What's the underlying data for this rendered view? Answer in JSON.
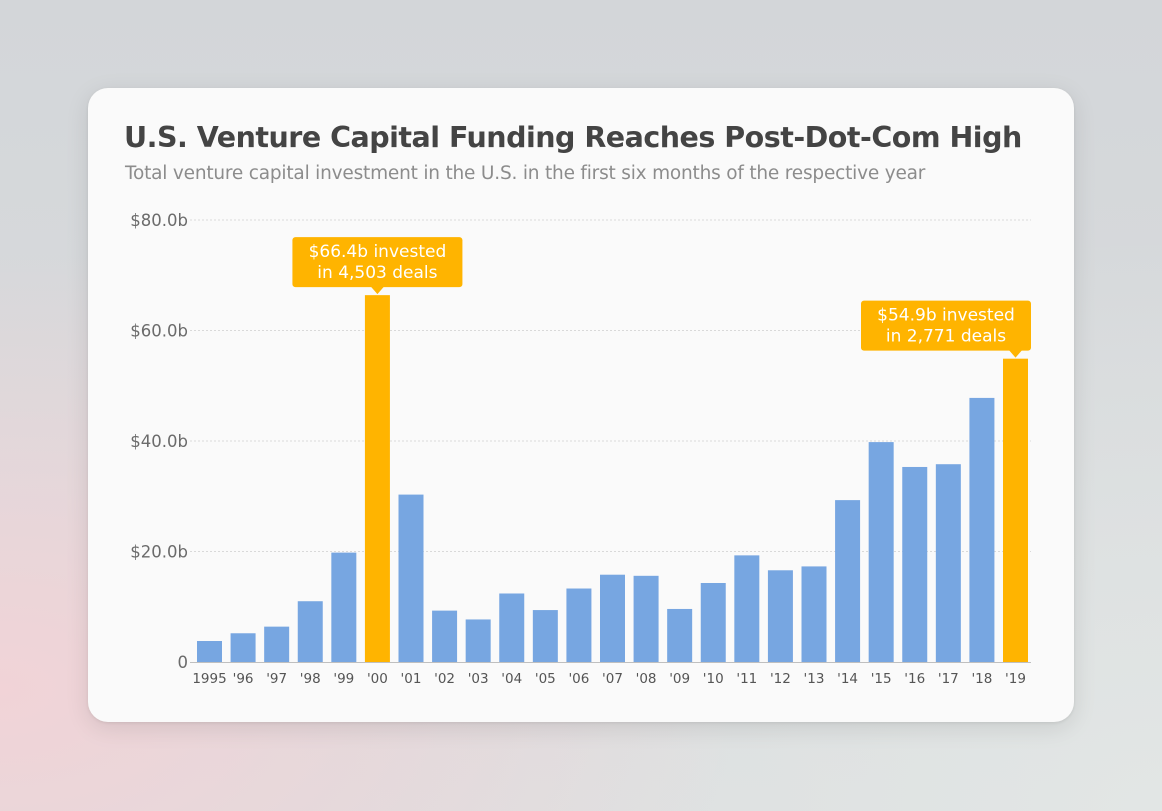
{
  "chart_data": {
    "type": "bar",
    "title": "U.S. Venture Capital Funding Reaches Post-Dot-Com High",
    "subtitle": "Total venture capital investment in the U.S. in the first six months of the respective year",
    "categories": [
      "1995",
      "'96",
      "'97",
      "'98",
      "'99",
      "'00",
      "'01",
      "'02",
      "'03",
      "'04",
      "'05",
      "'06",
      "'07",
      "'08",
      "'09",
      "'10",
      "'11",
      "'12",
      "'13",
      "'14",
      "'15",
      "'16",
      "'17",
      "'18",
      "'19"
    ],
    "values": [
      3.8,
      5.2,
      6.4,
      11.0,
      19.8,
      66.4,
      30.3,
      9.3,
      7.7,
      12.4,
      9.4,
      13.3,
      15.8,
      15.6,
      9.6,
      14.3,
      19.3,
      16.6,
      17.3,
      29.3,
      39.8,
      35.3,
      35.8,
      47.8,
      54.9
    ],
    "ylim": [
      0,
      80
    ],
    "yticks": [
      0,
      20,
      40,
      60,
      80
    ],
    "ytick_labels": [
      "0",
      "$20.0b",
      "$40.0b",
      "$60.0b",
      "$80.0b"
    ],
    "xlabel": "",
    "ylabel": "",
    "grid": true,
    "highlight_indices": [
      5,
      24
    ],
    "annotations": [
      {
        "index": 5,
        "lines": [
          "$66.4b invested",
          "in 4,503 deals"
        ]
      },
      {
        "index": 24,
        "lines": [
          "$54.9b invested",
          "in 2,771 deals"
        ]
      }
    ],
    "colors": {
      "bar": "#77a6e1",
      "highlight": "#ffb400",
      "grid": "#d9d9d9",
      "axis": "#bfbfbf"
    }
  }
}
